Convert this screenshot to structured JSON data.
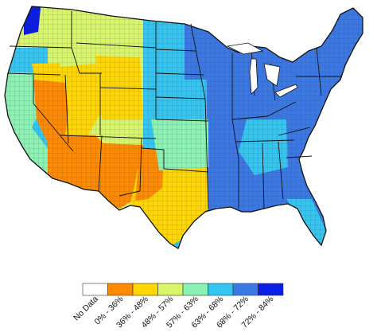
{
  "map": {
    "region": "contiguous-united-states",
    "unit": "county",
    "palette": {
      "no_data": "#ffffff",
      "c1": "#ff8a00",
      "c2": "#ffd600",
      "c3": "#d8f56a",
      "c4": "#8af2b2",
      "c5": "#33c6f2",
      "c6": "#3a78e6",
      "c7": "#0a1ee6",
      "border": "#222222"
    }
  },
  "legend": {
    "classes": [
      {
        "label": "No Data",
        "color": "#ffffff"
      },
      {
        "label": "0% - 36%",
        "color": "#ff8a00"
      },
      {
        "label": "36% - 48%",
        "color": "#ffd600"
      },
      {
        "label": "48% - 57%",
        "color": "#d8f56a"
      },
      {
        "label": "57% - 63%",
        "color": "#8af2b2"
      },
      {
        "label": "63% - 68%",
        "color": "#33c6f2"
      },
      {
        "label": "68% - 72%",
        "color": "#3a78e6"
      },
      {
        "label": "72% - 84%",
        "color": "#0a1ee6"
      }
    ]
  }
}
